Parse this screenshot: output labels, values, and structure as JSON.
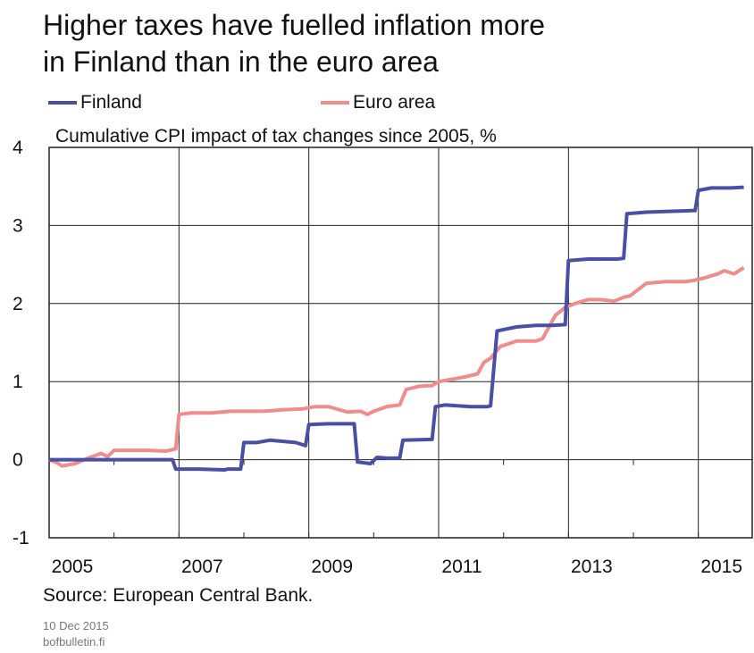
{
  "title_lines": [
    "Higher taxes have fuelled inflation more",
    "in Finland than in the euro area"
  ],
  "legend": [
    {
      "label": "Finland",
      "color": "#4a4fa6"
    },
    {
      "label": "Euro area",
      "color": "#f08c8c"
    }
  ],
  "source": "Source: European Central Bank.",
  "date": "10 Dec 2015",
  "site": "bofbulletin.fi",
  "chart_data": {
    "type": "line",
    "title": "Cumulative CPI impact of tax changes since 2005, %",
    "xlabel": "",
    "ylabel": "",
    "xlim": [
      2005.0,
      2015.83
    ],
    "ylim": [
      -1,
      4
    ],
    "y_ticks": [
      "4",
      "3",
      "2",
      "1",
      "0",
      "-1"
    ],
    "x_tick_labels": [
      "2005",
      "2007",
      "2009",
      "2011",
      "2013",
      "2015"
    ],
    "grid": true,
    "legend_position": "top-left",
    "series": [
      {
        "name": "Finland",
        "color": "#4a4fa6",
        "x": [
          2005.0,
          2006.9,
          2006.95,
          2007.3,
          2007.7,
          2007.75,
          2007.95,
          2008.0,
          2008.2,
          2008.4,
          2008.8,
          2008.95,
          2009.0,
          2009.3,
          2009.7,
          2009.75,
          2009.95,
          2010.05,
          2010.2,
          2010.4,
          2010.45,
          2010.9,
          2010.95,
          2011.1,
          2011.5,
          2011.75,
          2011.8,
          2011.9,
          2012.2,
          2012.5,
          2012.75,
          2012.95,
          2013.0,
          2013.3,
          2013.75,
          2013.85,
          2013.9,
          2014.2,
          2014.9,
          2014.95,
          2015.0,
          2015.2,
          2015.5,
          2015.7
        ],
        "y": [
          0.0,
          0.0,
          -0.12,
          -0.12,
          -0.13,
          -0.12,
          -0.12,
          0.22,
          0.22,
          0.25,
          0.22,
          0.18,
          0.45,
          0.46,
          0.46,
          -0.03,
          -0.05,
          0.03,
          0.02,
          0.02,
          0.25,
          0.26,
          0.68,
          0.7,
          0.68,
          0.68,
          0.69,
          1.65,
          1.7,
          1.72,
          1.72,
          1.73,
          2.55,
          2.57,
          2.57,
          2.58,
          3.15,
          3.17,
          3.19,
          3.19,
          3.45,
          3.48,
          3.48,
          3.49
        ]
      },
      {
        "name": "Euro area",
        "color": "#f08c8c",
        "x": [
          2005.0,
          2005.1,
          2005.2,
          2005.4,
          2005.6,
          2005.8,
          2005.9,
          2006.0,
          2006.2,
          2006.5,
          2006.8,
          2006.95,
          2007.0,
          2007.2,
          2007.5,
          2007.8,
          2008.0,
          2008.3,
          2008.6,
          2008.9,
          2009.1,
          2009.3,
          2009.6,
          2009.8,
          2009.9,
          2010.0,
          2010.2,
          2010.4,
          2010.5,
          2010.7,
          2010.9,
          2011.0,
          2011.2,
          2011.4,
          2011.6,
          2011.7,
          2011.8,
          2011.95,
          2012.2,
          2012.5,
          2012.6,
          2012.8,
          2012.95,
          2013.1,
          2013.3,
          2013.5,
          2013.7,
          2013.85,
          2013.95,
          2014.2,
          2014.5,
          2014.8,
          2014.95,
          2015.1,
          2015.3,
          2015.4,
          2015.55,
          2015.7
        ],
        "y": [
          0.0,
          -0.03,
          -0.08,
          -0.05,
          0.02,
          0.08,
          0.04,
          0.12,
          0.12,
          0.12,
          0.11,
          0.14,
          0.58,
          0.6,
          0.6,
          0.62,
          0.62,
          0.62,
          0.64,
          0.65,
          0.68,
          0.68,
          0.61,
          0.62,
          0.58,
          0.62,
          0.68,
          0.7,
          0.9,
          0.94,
          0.95,
          1.0,
          1.03,
          1.06,
          1.1,
          1.25,
          1.3,
          1.45,
          1.52,
          1.52,
          1.55,
          1.85,
          1.95,
          2.0,
          2.05,
          2.05,
          2.03,
          2.08,
          2.1,
          2.26,
          2.28,
          2.28,
          2.3,
          2.33,
          2.38,
          2.42,
          2.38,
          2.46
        ]
      }
    ]
  }
}
